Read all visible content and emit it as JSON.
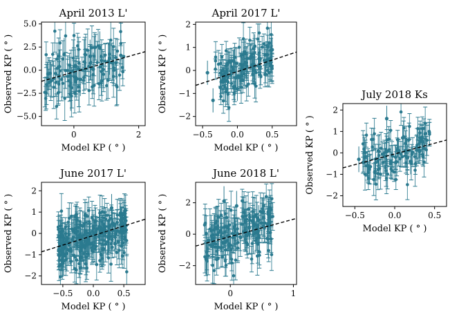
{
  "figure": {
    "marker_color": "#2b7a8f",
    "fit_line_color": "#000000"
  },
  "chart_data": [
    {
      "type": "scatter",
      "title": "April 2013 L'",
      "xlabel": "Model KP ( ° )",
      "ylabel": "Observed KP ( ° )",
      "xlim": [
        -1.0,
        2.2
      ],
      "ylim": [
        -6.0,
        5.2
      ],
      "xticks": [
        0,
        2
      ],
      "xtick_labels": [
        "0",
        "2"
      ],
      "yticks": [
        -5.0,
        -2.5,
        0.0,
        2.5,
        5.0
      ],
      "ytick_labels": [
        "−5.0",
        "−2.5",
        "0.0",
        "2.5",
        "5.0"
      ],
      "fit_line": {
        "slope": 1.0,
        "intercept": -0.2
      },
      "cloud": {
        "n": 120,
        "x_range": [
          -0.9,
          1.55
        ],
        "y_sd": 1.6,
        "err": [
          1.2,
          2.4
        ]
      },
      "points": [
        {
          "x": -0.45,
          "y": 0.4
        },
        {
          "x": 0.5,
          "y": 1.5
        },
        {
          "x": 1.1,
          "y": 1.3
        },
        {
          "x": 0.2,
          "y": -1.0
        },
        {
          "x": -0.3,
          "y": 1.7
        },
        {
          "x": 0.8,
          "y": 2.4
        },
        {
          "x": 1.45,
          "y": 1.6
        },
        {
          "x": 0.05,
          "y": 0.5
        },
        {
          "x": -0.8,
          "y": -0.4
        },
        {
          "x": 0.6,
          "y": 0.1
        },
        {
          "x": 1.3,
          "y": 0.8
        },
        {
          "x": -0.1,
          "y": -2.6
        }
      ]
    },
    {
      "type": "scatter",
      "title": "April 2017 L'",
      "xlabel": "Model KP ( ° )",
      "ylabel": "Observed KP ( ° )",
      "xlim": [
        -0.6,
        0.85
      ],
      "ylim": [
        -2.4,
        2.1
      ],
      "xticks": [
        -0.5,
        0.0,
        0.5
      ],
      "xtick_labels": [
        "−0.5",
        "0.0",
        "0.5"
      ],
      "yticks": [
        -2,
        -1,
        0,
        1,
        2
      ],
      "ytick_labels": [
        "−2",
        "−1",
        "0",
        "1",
        "2"
      ],
      "fit_line": {
        "slope": 1.0,
        "intercept": -0.05
      },
      "cloud": {
        "n": 140,
        "x_range": [
          -0.32,
          0.5
        ],
        "y_sd": 0.55,
        "err": [
          0.35,
          0.7
        ]
      },
      "points": [
        {
          "x": -0.35,
          "y": -1.3
        },
        {
          "x": 0.1,
          "y": 0.8
        },
        {
          "x": -0.05,
          "y": 0.4
        },
        {
          "x": 0.5,
          "y": 0.9
        },
        {
          "x": -0.2,
          "y": -0.5
        },
        {
          "x": 0.3,
          "y": 0.2
        },
        {
          "x": 0.0,
          "y": -0.8
        },
        {
          "x": 0.25,
          "y": 1.05
        },
        {
          "x": -0.43,
          "y": -0.1
        }
      ]
    },
    {
      "type": "scatter",
      "title": "June 2017 L'",
      "xlabel": "Model KP ( ° )",
      "ylabel": "Observed KP ( ° )",
      "xlim": [
        -0.85,
        0.85
      ],
      "ylim": [
        -2.4,
        2.4
      ],
      "xticks": [
        -0.5,
        0.0,
        0.5
      ],
      "xtick_labels": [
        "−0.5",
        "0.0",
        "0.5"
      ],
      "yticks": [
        -2,
        -1,
        0,
        1,
        2
      ],
      "ytick_labels": [
        "−2",
        "−1",
        "0",
        "1",
        "2"
      ],
      "fit_line": {
        "slope": 0.9,
        "intercept": -0.1
      },
      "cloud": {
        "n": 260,
        "x_range": [
          -0.58,
          0.55
        ],
        "y_sd": 0.6,
        "err": [
          0.45,
          0.85
        ]
      },
      "points": [
        {
          "x": 0.5,
          "y": 0.9
        },
        {
          "x": -0.5,
          "y": -1.4
        },
        {
          "x": 0.1,
          "y": 0.3
        },
        {
          "x": -0.2,
          "y": -0.4
        },
        {
          "x": 0.3,
          "y": 1.2
        },
        {
          "x": -0.05,
          "y": -0.1
        },
        {
          "x": 0.45,
          "y": 0.6
        },
        {
          "x": -0.35,
          "y": 0.2
        }
      ]
    },
    {
      "type": "scatter",
      "title": "June 2018 L'",
      "xlabel": "Model KP ( ° )",
      "ylabel": "Observed KP ( ° )",
      "xlim": [
        -0.55,
        1.05
      ],
      "ylim": [
        -3.2,
        3.3
      ],
      "xticks": [
        0,
        1
      ],
      "xtick_labels": [
        "0",
        "1"
      ],
      "yticks": [
        -2,
        0,
        2
      ],
      "ytick_labels": [
        "−2",
        "0",
        "2"
      ],
      "fit_line": {
        "slope": 1.1,
        "intercept": -0.15
      },
      "cloud": {
        "n": 170,
        "x_range": [
          -0.42,
          0.7
        ],
        "y_sd": 0.85,
        "err": [
          0.6,
          1.3
        ]
      },
      "points": [
        {
          "x": -0.1,
          "y": 2.1
        },
        {
          "x": 0.1,
          "y": 1.8
        },
        {
          "x": -0.38,
          "y": -1.6
        },
        {
          "x": 0.6,
          "y": 1.4
        },
        {
          "x": 0.3,
          "y": 0.4
        },
        {
          "x": 0.0,
          "y": -0.7
        },
        {
          "x": 0.45,
          "y": 0.9
        },
        {
          "x": -0.25,
          "y": 0.3
        }
      ]
    },
    {
      "type": "scatter",
      "title": "July 2018 Ks",
      "xlabel": "Model KP ( ° )",
      "ylabel": "Observed KP ( ° )",
      "xlim": [
        -0.65,
        0.65
      ],
      "ylim": [
        -2.5,
        2.3
      ],
      "xticks": [
        -0.5,
        0.0,
        0.5
      ],
      "xtick_labels": [
        "−0.5",
        "0.0",
        "0.5"
      ],
      "yticks": [
        -2,
        -1,
        0,
        1,
        2
      ],
      "ytick_labels": [
        "−2",
        "−1",
        "0",
        "1",
        "2"
      ],
      "fit_line": {
        "slope": 1.0,
        "intercept": -0.05
      },
      "cloud": {
        "n": 120,
        "x_range": [
          -0.42,
          0.45
        ],
        "y_sd": 0.6,
        "err": [
          0.4,
          0.8
        ]
      },
      "points": [
        {
          "x": -0.45,
          "y": -0.3
        },
        {
          "x": -0.1,
          "y": 1.6
        },
        {
          "x": 0.1,
          "y": 0.7
        },
        {
          "x": 0.35,
          "y": 0.5
        },
        {
          "x": 0.2,
          "y": -0.4
        },
        {
          "x": -0.25,
          "y": -0.9
        },
        {
          "x": 0.05,
          "y": 0.1
        }
      ]
    }
  ]
}
